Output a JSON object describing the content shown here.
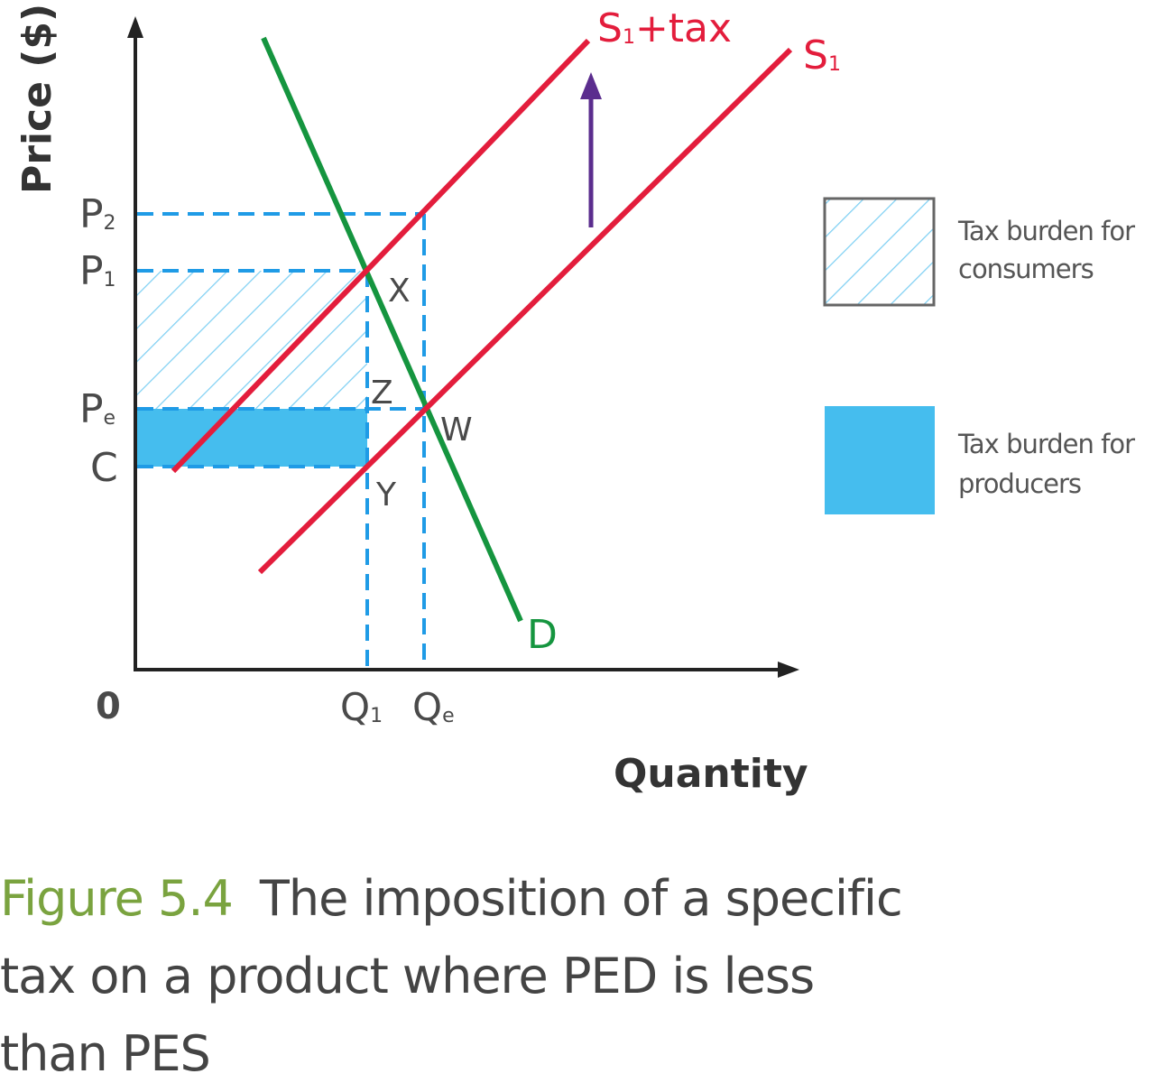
{
  "figure": {
    "caption_number": "Figure 5.4",
    "caption_lines": [
      "The imposition of a specific",
      "tax on a product where PED is less",
      "than PES"
    ]
  },
  "axes": {
    "y_label": "Price ($)",
    "x_label": "Quantity",
    "origin": "0"
  },
  "price_labels": [
    {
      "base": "P",
      "sub": "2"
    },
    {
      "base": "P",
      "sub": "1"
    },
    {
      "base": "P",
      "sub": "e"
    },
    {
      "base": "C",
      "sub": ""
    }
  ],
  "quantity_labels": [
    {
      "base": "Q",
      "sub": "1"
    },
    {
      "base": "Q",
      "sub": "e"
    }
  ],
  "points": [
    "X",
    "Z",
    "W",
    "Y"
  ],
  "curves": {
    "demand": "D",
    "supply": {
      "base": "S",
      "sub": "1"
    },
    "supply_tax": {
      "base": "S",
      "sub": "1",
      "suffix": "+tax"
    }
  },
  "legend": [
    {
      "lines": [
        "Tax burden for",
        "consumers"
      ],
      "style": "hatched"
    },
    {
      "lines": [
        "Tax burden for",
        "producers"
      ],
      "style": "solid"
    }
  ],
  "colors": {
    "supply": "#e31d3c",
    "demand": "#15953f",
    "dashed": "#1f9be6",
    "fill": "#45bdee",
    "arrow": "#5b2d8e",
    "caption_accent": "#7aa33f"
  }
}
